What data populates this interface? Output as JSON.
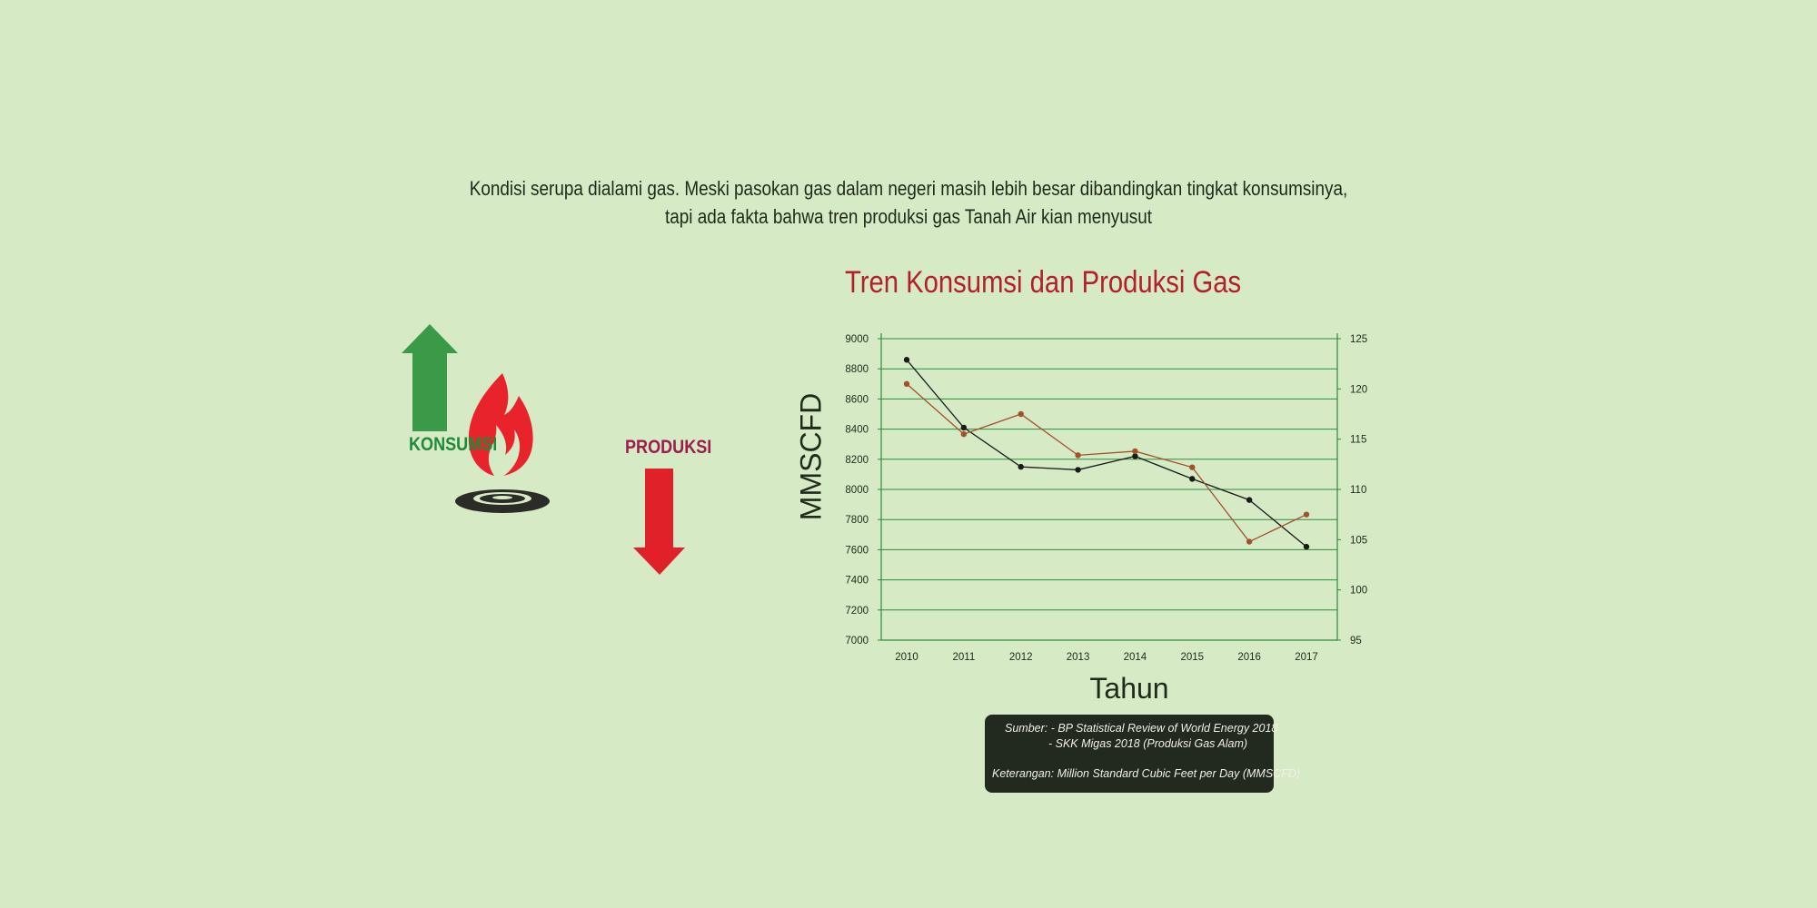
{
  "intro": {
    "line1": "Kondisi serupa dialami gas. Meski pasokan gas dalam negeri masih lebih besar dibandingkan tingkat konsumsinya,",
    "line2": "tapi ada fakta bahwa tren produksi gas Tanah Air kian menyusut"
  },
  "illustration": {
    "konsumsi_label": "KONSUMSI",
    "produksi_label": "PRODUKSI",
    "colors": {
      "up_arrow": "#3b9a47",
      "down_arrow": "#e02129",
      "flame": "#e8232b",
      "burner": "#2b2b28"
    },
    "icons": [
      "arrow-up-icon",
      "flame-icon",
      "gas-burner-icon",
      "arrow-down-icon"
    ]
  },
  "chart_data": {
    "type": "line",
    "title": "Tren Konsumsi dan Produksi Gas",
    "xlabel": "Tahun",
    "ylabel": "MMSCFD",
    "categories": [
      "2010",
      "2011",
      "2012",
      "2013",
      "2014",
      "2015",
      "2016",
      "2017"
    ],
    "y_left": {
      "ylim": [
        7000,
        9000
      ],
      "ticks": [
        "7000",
        "7200",
        "7400",
        "7600",
        "7800",
        "8000",
        "8200",
        "8400",
        "8600",
        "8800",
        "9000"
      ]
    },
    "y_right": {
      "ylim": [
        95,
        125
      ],
      "ticks": [
        "95",
        "100",
        "105",
        "110",
        "115",
        "120",
        "125"
      ]
    },
    "series": [
      {
        "axis": "left",
        "color": "#1a1a1a",
        "values": [
          8860,
          8410,
          8150,
          8130,
          8220,
          8070,
          7930,
          7620
        ]
      },
      {
        "axis": "right",
        "color": "#a0522d",
        "values": [
          120.5,
          115.5,
          117.5,
          113.4,
          113.8,
          112.2,
          104.8,
          107.5
        ]
      }
    ],
    "grid": true,
    "colors": {
      "axis": "#2e8b3a",
      "grid": "#2e8b3a",
      "title": "#b3202a"
    }
  },
  "source": {
    "line1": "Sumber:  -  BP Statistical Review of World Energy 2018",
    "line2": "- SKK Migas 2018 (Produksi Gas Alam)",
    "line3": "Keterangan: Million Standard Cubic Feet per Day (MMSCFD)"
  }
}
